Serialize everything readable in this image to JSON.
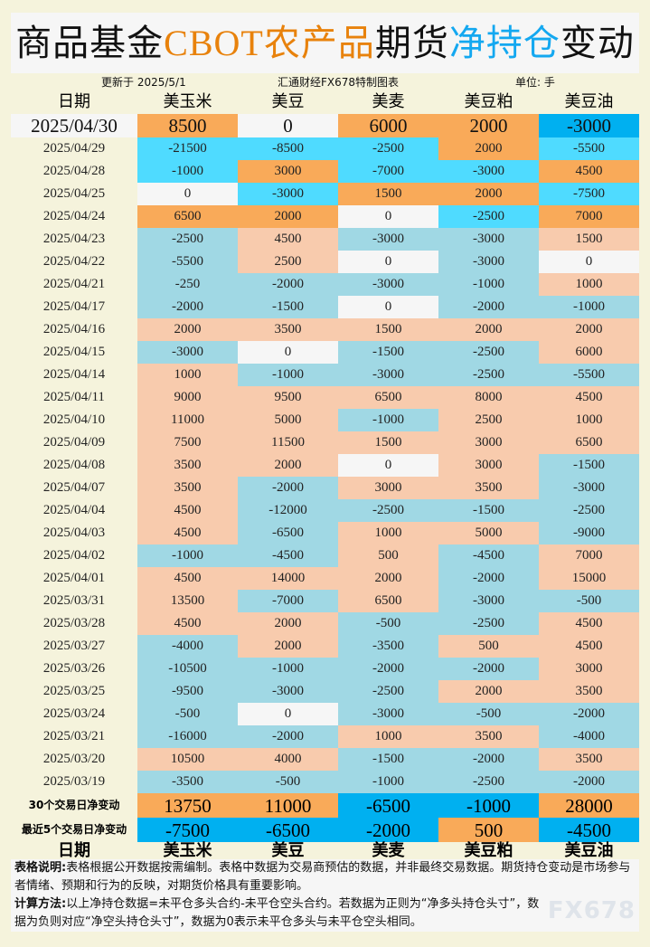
{
  "title": {
    "p1": "商品基金",
    "p2": "CBOT农产品",
    "p3": "期货",
    "p4": "净持仓",
    "p5": "变动"
  },
  "info": {
    "updated": "更新于 2025/5/1",
    "source": "汇通财经FX678特制图表",
    "unit": "单位: 手"
  },
  "headers": [
    "日期",
    "美玉米",
    "美豆",
    "美麦",
    "美豆粕",
    "美豆油"
  ],
  "colors": {
    "orange": "#F9AA59",
    "blue": "#00B0F0",
    "cyan": "#4FDBFF",
    "white": "#F6F6F6",
    "peach": "#F8CBAD",
    "lightblue": "#A0D8E4"
  },
  "rows": [
    {
      "date": "2025/04/30",
      "values": [
        "8500",
        "0",
        "6000",
        "2000",
        "-3000"
      ],
      "style": "top"
    },
    {
      "date": "2025/04/29",
      "values": [
        "-21500",
        "-8500",
        "-2500",
        "2000",
        "-5500"
      ],
      "style": "bright"
    },
    {
      "date": "2025/04/28",
      "values": [
        "-1000",
        "3000",
        "-7000",
        "-3000",
        "4500"
      ],
      "style": "bright"
    },
    {
      "date": "2025/04/25",
      "values": [
        "0",
        "-3000",
        "1500",
        "2000",
        "-7500"
      ],
      "style": "bright"
    },
    {
      "date": "2025/04/24",
      "values": [
        "6500",
        "2000",
        "0",
        "-2500",
        "7000"
      ],
      "style": "bright"
    },
    {
      "date": "2025/04/23",
      "values": [
        "-2500",
        "4500",
        "-3000",
        "-3000",
        "1500"
      ]
    },
    {
      "date": "2025/04/22",
      "values": [
        "-5500",
        "2500",
        "0",
        "-3000",
        "0"
      ]
    },
    {
      "date": "2025/04/21",
      "values": [
        "-250",
        "-2000",
        "-3000",
        "-1000",
        "1000"
      ]
    },
    {
      "date": "2025/04/17",
      "values": [
        "-2000",
        "-1500",
        "0",
        "-2000",
        "-1000"
      ]
    },
    {
      "date": "2025/04/16",
      "values": [
        "2000",
        "3500",
        "1500",
        "2000",
        "2000"
      ]
    },
    {
      "date": "2025/04/15",
      "values": [
        "-3000",
        "0",
        "-1500",
        "-2500",
        "6000"
      ]
    },
    {
      "date": "2025/04/14",
      "values": [
        "1000",
        "-1000",
        "-3000",
        "-2500",
        "-5500"
      ]
    },
    {
      "date": "2025/04/11",
      "values": [
        "9000",
        "9500",
        "6500",
        "8000",
        "4500"
      ]
    },
    {
      "date": "2025/04/10",
      "values": [
        "11000",
        "5000",
        "-1000",
        "2500",
        "1000"
      ]
    },
    {
      "date": "2025/04/09",
      "values": [
        "7500",
        "11500",
        "1500",
        "3000",
        "6500"
      ]
    },
    {
      "date": "2025/04/08",
      "values": [
        "3500",
        "2000",
        "0",
        "3000",
        "-1500"
      ]
    },
    {
      "date": "2025/04/07",
      "values": [
        "3500",
        "-2000",
        "3000",
        "3500",
        "-3000"
      ]
    },
    {
      "date": "2025/04/04",
      "values": [
        "4500",
        "-12000",
        "-2500",
        "-1500",
        "-2500"
      ]
    },
    {
      "date": "2025/04/03",
      "values": [
        "4500",
        "-6500",
        "1000",
        "5000",
        "-9000"
      ]
    },
    {
      "date": "2025/04/02",
      "values": [
        "-1000",
        "-4500",
        "500",
        "-4500",
        "7000"
      ]
    },
    {
      "date": "2025/04/01",
      "values": [
        "4500",
        "14000",
        "2000",
        "-2000",
        "15000"
      ]
    },
    {
      "date": "2025/03/31",
      "values": [
        "13500",
        "-7000",
        "6500",
        "-3000",
        "-500"
      ]
    },
    {
      "date": "2025/03/28",
      "values": [
        "4500",
        "2000",
        "-500",
        "-2500",
        "4500"
      ]
    },
    {
      "date": "2025/03/27",
      "values": [
        "-4000",
        "2000",
        "-3500",
        "500",
        "4500"
      ]
    },
    {
      "date": "2025/03/26",
      "values": [
        "-10500",
        "-1000",
        "-2000",
        "-2000",
        "3000"
      ]
    },
    {
      "date": "2025/03/25",
      "values": [
        "-9500",
        "-3000",
        "-2500",
        "2000",
        "3500"
      ]
    },
    {
      "date": "2025/03/24",
      "values": [
        "-500",
        "0",
        "-3000",
        "-500",
        "-2000"
      ]
    },
    {
      "date": "2025/03/21",
      "values": [
        "-16000",
        "-2000",
        "1000",
        "3500",
        "-4000"
      ]
    },
    {
      "date": "2025/03/20",
      "values": [
        "10500",
        "4000",
        "-1500",
        "-2000",
        "3500"
      ]
    },
    {
      "date": "2025/03/19",
      "values": [
        "-3500",
        "-500",
        "-1000",
        "-2500",
        "-2000"
      ]
    }
  ],
  "summary": [
    {
      "label": "30个交易日净变动",
      "values": [
        "13750",
        "11000",
        "-6500",
        "-1000",
        "28000"
      ]
    },
    {
      "label": "最近5个交易日净变动",
      "values": [
        "-7500",
        "-6500",
        "-2000",
        "500",
        "-4500"
      ]
    }
  ],
  "notes": {
    "l1_label": "表格说明:",
    "l1": "表格根据公开数据按需编制。表格中数据为交易商预估的数据，并非最终交易数据。期货持仓变动是市场参与者情绪、预期和行为的反映，对期货价格具有重要影响。",
    "l2_label": "计算方法:",
    "l2": "以上净持仓数据=未平仓多头合约-未平仓空头合约。若数据为正则为“净多头持仓头寸”，数据为负则对应“净空头持仓头寸”，数据为0表示未平仓多头与未平仓空头相同。"
  },
  "watermark": "FX678"
}
